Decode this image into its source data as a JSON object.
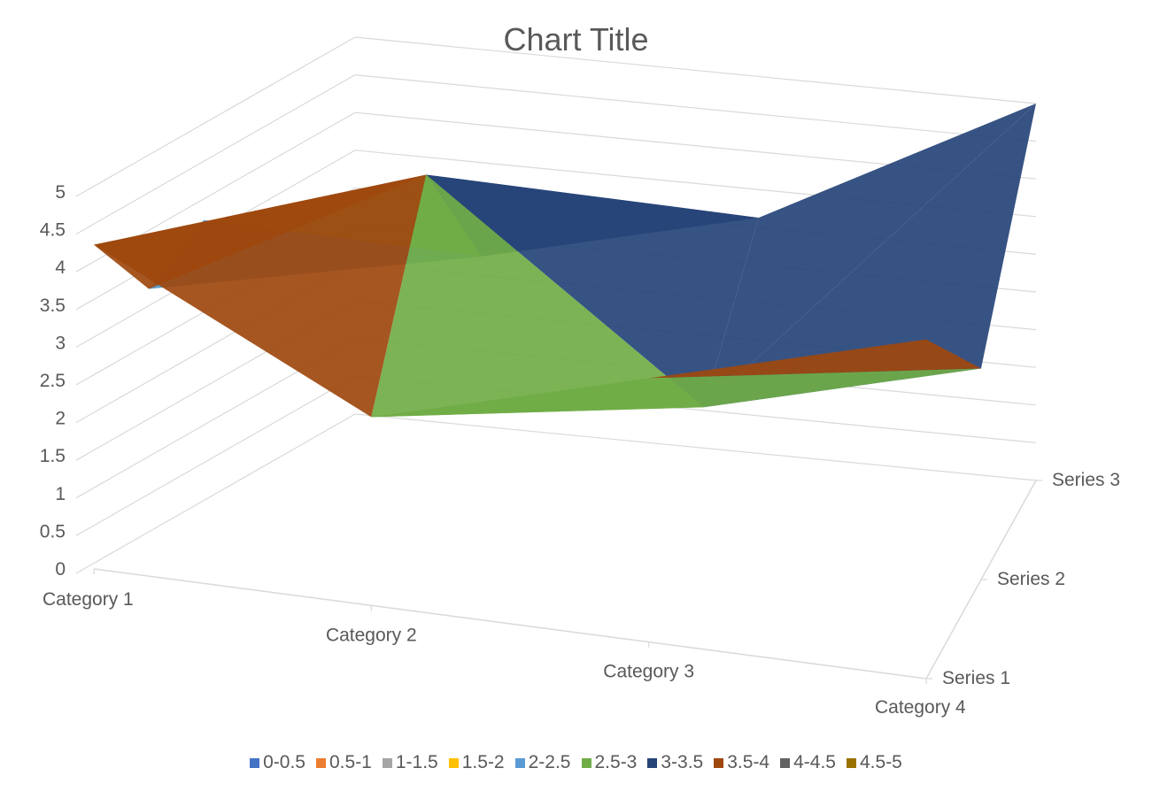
{
  "chart_data": {
    "type": "surface",
    "title": "Chart Title",
    "categories": [
      "Category 1",
      "Category 2",
      "Category 3",
      "Category 4"
    ],
    "series": [
      {
        "name": "Series 1",
        "values": [
          4.3,
          2.5,
          3.5,
          4.5
        ]
      },
      {
        "name": "Series 2",
        "values": [
          2.4,
          4.4,
          1.8,
          2.8
        ]
      },
      {
        "name": "Series 3",
        "values": [
          2.0,
          2.0,
          3.0,
          5.0
        ]
      }
    ],
    "zlim": [
      0,
      5
    ],
    "z_ticks": [
      "0",
      "0.5",
      "1",
      "1.5",
      "2",
      "2.5",
      "3",
      "3.5",
      "4",
      "4.5",
      "5"
    ],
    "grid": true,
    "legend_position": "bottom",
    "legend": [
      {
        "label": "0-0.5",
        "color": "#4472c4"
      },
      {
        "label": "0.5-1",
        "color": "#ed7d31"
      },
      {
        "label": "1-1.5",
        "color": "#a5a5a5"
      },
      {
        "label": "1.5-2",
        "color": "#ffc000"
      },
      {
        "label": "2-2.5",
        "color": "#5b9bd5"
      },
      {
        "label": "2.5-3",
        "color": "#70ad47"
      },
      {
        "label": "3-3.5",
        "color": "#264478"
      },
      {
        "label": "3.5-4",
        "color": "#9e480e"
      },
      {
        "label": "4-4.5",
        "color": "#636363"
      },
      {
        "label": "4.5-5",
        "color": "#997300"
      }
    ]
  }
}
